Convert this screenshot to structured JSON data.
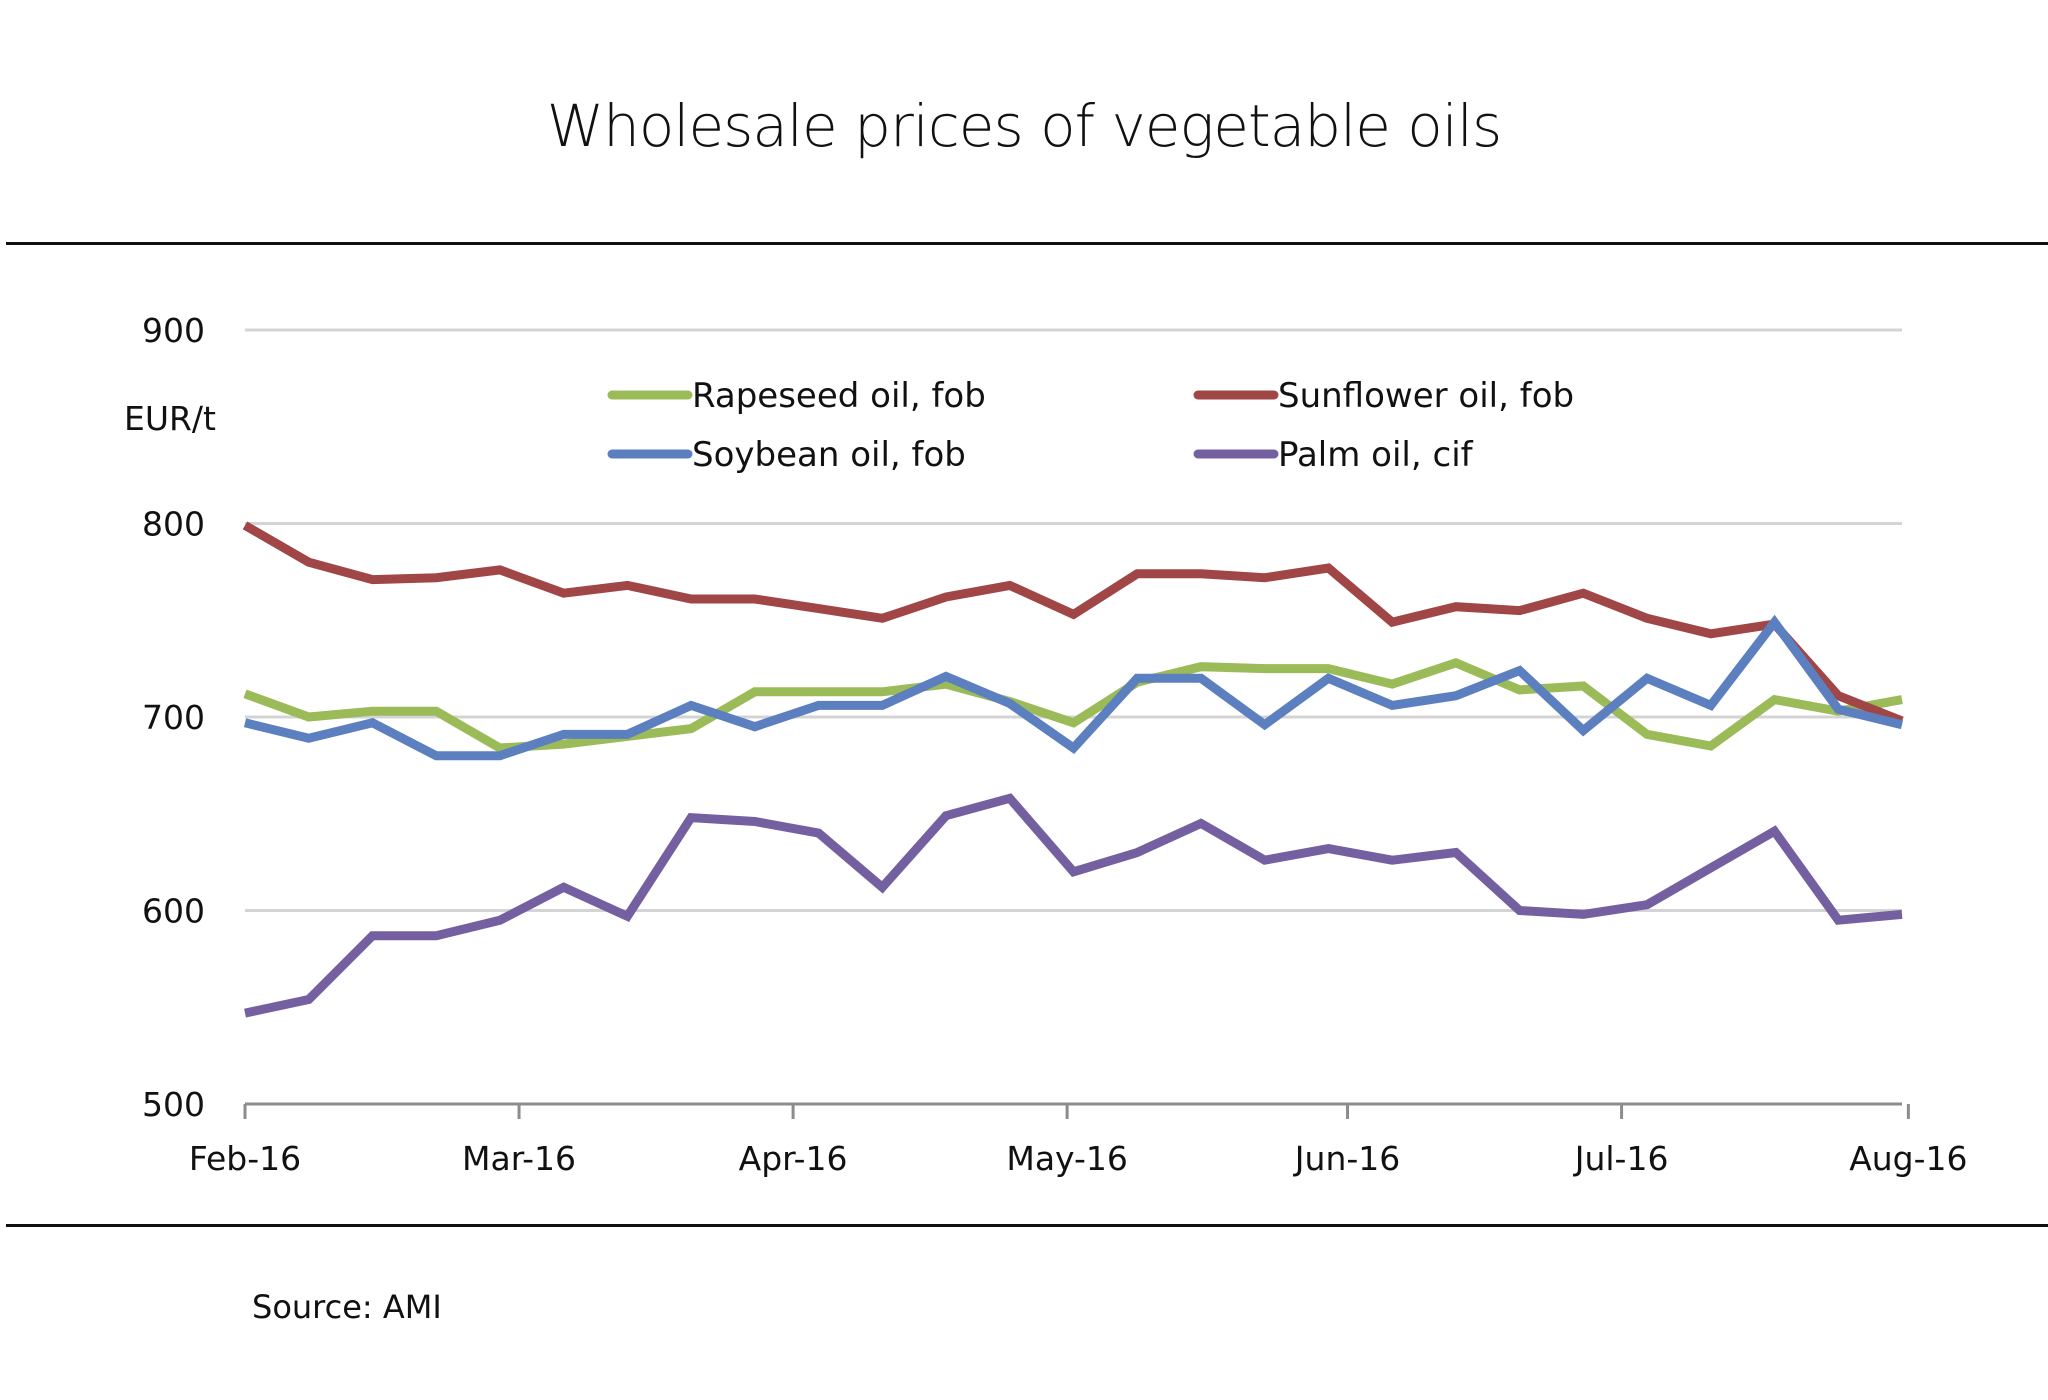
{
  "chart_data": {
    "type": "line",
    "title": "Wholesale prices of vegetable oils",
    "ylabel": "EUR/t",
    "xlabel": "",
    "ylim": [
      500,
      900
    ],
    "yticks": [
      500,
      600,
      700,
      800,
      900
    ],
    "ytick_labels": [
      "500",
      "600",
      "700",
      "800",
      "900"
    ],
    "xtick_labels": [
      "Feb-16",
      "Mar-16",
      "Apr-16",
      "May-16",
      "Jun-16",
      "Jul-16",
      "Aug-16"
    ],
    "xtick_positions": [
      0,
      4.3,
      8.6,
      12.9,
      17.3,
      21.6,
      26.1
    ],
    "x_count": 27,
    "grid": true,
    "legend_position": "top-center",
    "series": [
      {
        "name": "Rapeseed oil, fob",
        "color": "#9bbb59",
        "values": [
          712,
          700,
          703,
          703,
          684,
          686,
          690,
          694,
          713,
          713,
          713,
          717,
          708,
          697,
          718,
          726,
          725,
          725,
          717,
          728,
          714,
          716,
          691,
          685,
          709,
          703,
          709
        ]
      },
      {
        "name": "Sunflower oil, fob",
        "color": "#a04646",
        "values": [
          799,
          780,
          771,
          772,
          776,
          764,
          768,
          761,
          761,
          756,
          751,
          762,
          768,
          753,
          774,
          774,
          772,
          777,
          749,
          757,
          755,
          764,
          751,
          743,
          748,
          711,
          698
        ]
      },
      {
        "name": "Soybean oil, fob",
        "color": "#5b7fbf",
        "values": [
          697,
          689,
          697,
          680,
          680,
          691,
          691,
          706,
          695,
          706,
          706,
          721,
          707,
          684,
          720,
          720,
          696,
          720,
          706,
          711,
          724,
          693,
          720,
          706,
          749,
          704,
          696
        ]
      },
      {
        "name": "Palm oil, cif",
        "color": "#7460a0",
        "values": [
          547,
          554,
          587,
          587,
          595,
          612,
          597,
          648,
          646,
          640,
          612,
          649,
          658,
          620,
          630,
          645,
          626,
          632,
          626,
          630,
          600,
          598,
          603,
          622,
          641,
          595,
          598
        ]
      }
    ]
  },
  "footer": {
    "source": "Source: AMI"
  }
}
